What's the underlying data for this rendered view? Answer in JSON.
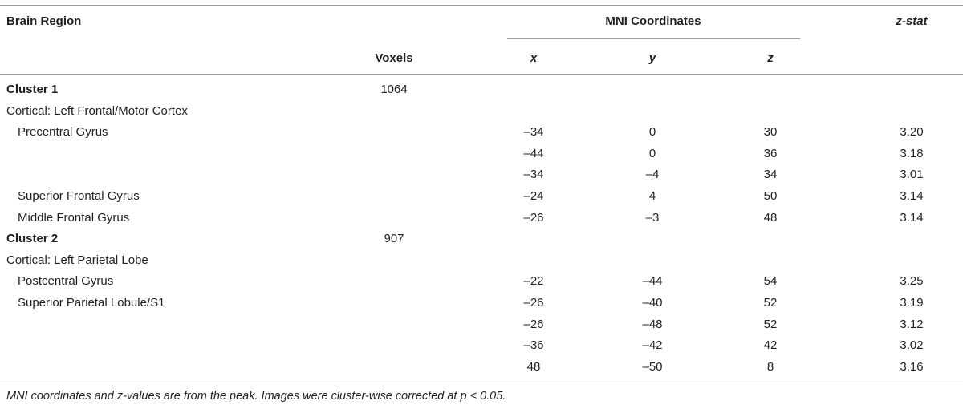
{
  "headers": {
    "region": "Brain Region",
    "mni": "MNI Coordinates",
    "zstat": "z-stat",
    "voxels": "Voxels",
    "x": "x",
    "y": "y",
    "z": "z"
  },
  "rows": [
    {
      "kind": "cluster",
      "label": "Cluster 1",
      "voxels": "1064",
      "x": "",
      "y": "",
      "z": "",
      "zstat": ""
    },
    {
      "kind": "section",
      "label": "Cortical: Left Frontal/Motor Cortex",
      "voxels": "",
      "x": "",
      "y": "",
      "z": "",
      "zstat": ""
    },
    {
      "kind": "region",
      "label": "Precentral Gyrus",
      "voxels": "",
      "x": "–34",
      "y": "0",
      "z": "30",
      "zstat": "3.20"
    },
    {
      "kind": "region",
      "label": "",
      "voxels": "",
      "x": "–44",
      "y": "0",
      "z": "36",
      "zstat": "3.18"
    },
    {
      "kind": "region",
      "label": "",
      "voxels": "",
      "x": "–34",
      "y": "–4",
      "z": "34",
      "zstat": "3.01"
    },
    {
      "kind": "region",
      "label": "Superior Frontal Gyrus",
      "voxels": "",
      "x": "–24",
      "y": "4",
      "z": "50",
      "zstat": "3.14"
    },
    {
      "kind": "region",
      "label": "Middle Frontal Gyrus",
      "voxels": "",
      "x": "–26",
      "y": "–3",
      "z": "48",
      "zstat": "3.14"
    },
    {
      "kind": "cluster",
      "label": "Cluster 2",
      "voxels": "907",
      "x": "",
      "y": "",
      "z": "",
      "zstat": ""
    },
    {
      "kind": "section",
      "label": "Cortical: Left Parietal Lobe",
      "voxels": "",
      "x": "",
      "y": "",
      "z": "",
      "zstat": ""
    },
    {
      "kind": "region",
      "label": "Postcentral Gyrus",
      "voxels": "",
      "x": "–22",
      "y": "–44",
      "z": "54",
      "zstat": "3.25"
    },
    {
      "kind": "region",
      "label": "Superior Parietal Lobule/S1",
      "voxels": "",
      "x": "–26",
      "y": "–40",
      "z": "52",
      "zstat": "3.19"
    },
    {
      "kind": "region",
      "label": "",
      "voxels": "",
      "x": "–26",
      "y": "–48",
      "z": "52",
      "zstat": "3.12"
    },
    {
      "kind": "region",
      "label": "",
      "voxels": "",
      "x": "–36",
      "y": "–42",
      "z": "42",
      "zstat": "3.02"
    },
    {
      "kind": "region",
      "label": "",
      "voxels": "",
      "x": "48",
      "y": "–50",
      "z": "8",
      "zstat": "3.16"
    }
  ],
  "footnote": "MNI coordinates and z-values are from the peak. Images were cluster-wise corrected at p < 0.05."
}
